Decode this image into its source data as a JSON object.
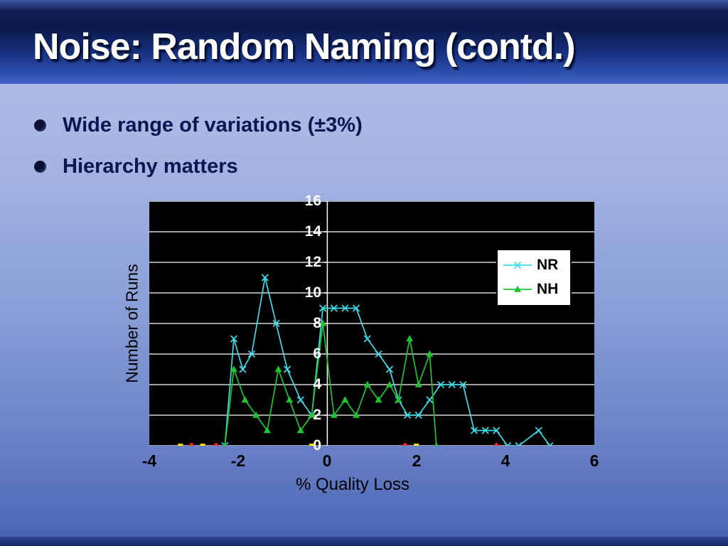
{
  "slide": {
    "title": "Noise: Random Naming (contd.)",
    "bullets": [
      "Wide range of variations (±3%)",
      "Hierarchy matters"
    ]
  },
  "colors": {
    "header_blue": "#0b1747",
    "body_blue": "#a7b5e2",
    "title_text": "#ffffff",
    "bullet_text": "#0a1650"
  },
  "chart_data": {
    "type": "line",
    "title": "",
    "xlabel": "% Quality Loss",
    "ylabel": "Number of Runs",
    "xlim": [
      -4,
      6
    ],
    "ylim": [
      0,
      16
    ],
    "x_ticks": [
      -4,
      -2,
      0,
      2,
      4,
      6
    ],
    "y_ticks": [
      0,
      2,
      4,
      6,
      8,
      10,
      12,
      14,
      16
    ],
    "grid": true,
    "plot_background": "#000000",
    "grid_color": "#ffffff",
    "legend_position": "top-right",
    "series": [
      {
        "name": "NR",
        "color": "#3edbe8",
        "marker": "x",
        "points": [
          [
            -2.3,
            0
          ],
          [
            -2.1,
            7
          ],
          [
            -1.9,
            5
          ],
          [
            -1.7,
            6
          ],
          [
            -1.4,
            11
          ],
          [
            -1.15,
            8
          ],
          [
            -0.9,
            5
          ],
          [
            -0.6,
            3
          ],
          [
            -0.35,
            2
          ],
          [
            -0.1,
            9
          ],
          [
            0.15,
            9
          ],
          [
            0.4,
            9
          ],
          [
            0.65,
            9
          ],
          [
            0.9,
            7
          ],
          [
            1.15,
            6
          ],
          [
            1.4,
            5
          ],
          [
            1.6,
            3
          ],
          [
            1.8,
            2
          ],
          [
            2.05,
            2
          ],
          [
            2.3,
            3
          ],
          [
            2.55,
            4
          ],
          [
            2.8,
            4
          ],
          [
            3.05,
            4
          ],
          [
            3.3,
            1
          ],
          [
            3.55,
            1
          ],
          [
            3.8,
            1
          ],
          [
            4.05,
            0
          ],
          [
            4.3,
            0
          ],
          [
            4.75,
            1
          ],
          [
            5,
            0
          ]
        ]
      },
      {
        "name": "NH",
        "color": "#1fc42f",
        "marker": "triangle",
        "points": [
          [
            -2.3,
            0
          ],
          [
            -2.1,
            5
          ],
          [
            -1.85,
            3
          ],
          [
            -1.6,
            2
          ],
          [
            -1.35,
            1
          ],
          [
            -1.1,
            5
          ],
          [
            -0.85,
            3
          ],
          [
            -0.6,
            1
          ],
          [
            -0.35,
            2
          ],
          [
            -0.1,
            8
          ],
          [
            0.15,
            2
          ],
          [
            0.4,
            3
          ],
          [
            0.65,
            2
          ],
          [
            0.9,
            4
          ],
          [
            1.15,
            3
          ],
          [
            1.4,
            4
          ],
          [
            1.6,
            3
          ],
          [
            1.85,
            7
          ],
          [
            2.05,
            4
          ],
          [
            2.3,
            6
          ],
          [
            2.45,
            0
          ]
        ]
      }
    ],
    "baseline_markers": [
      {
        "color": "#ffe900",
        "shape": "square",
        "y": 0,
        "x": [
          -3.3,
          -2.8,
          -0.35,
          2.0
        ]
      },
      {
        "color": "#ff2a2a",
        "shape": "diamond",
        "y": 0,
        "x": [
          -3.05,
          -2.5,
          1.75,
          3.8
        ]
      }
    ]
  }
}
